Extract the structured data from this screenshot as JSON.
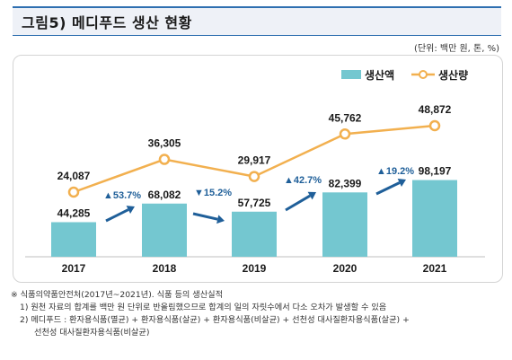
{
  "page": {
    "title": "그림5) 메디푸드 생산 현황",
    "unit": "(단위: 백만 원, 톤, %)"
  },
  "colors": {
    "bar": "#74c7d0",
    "line": "#f2b04f",
    "arrow": "#1f5f99",
    "accent": "#2e6fb0"
  },
  "chart_data": {
    "type": "bar",
    "categories": [
      "2017",
      "2018",
      "2019",
      "2020",
      "2021"
    ],
    "series": [
      {
        "name": "생산액",
        "type": "bar",
        "values": [
          44285,
          68082,
          57725,
          82399,
          98197
        ],
        "labels": [
          "44,285",
          "68,082",
          "57,725",
          "82,399",
          "98,197"
        ]
      },
      {
        "name": "생산량",
        "type": "line",
        "values": [
          24087,
          36305,
          29917,
          45762,
          48872
        ],
        "labels": [
          "24,087",
          "36,305",
          "29,917",
          "45,762",
          "48,872"
        ]
      }
    ],
    "growth_rates": [
      {
        "from": "2017",
        "to": "2018",
        "direction": "up",
        "label": "▲53.7%"
      },
      {
        "from": "2018",
        "to": "2019",
        "direction": "down",
        "label": "▼15.2%"
      },
      {
        "from": "2019",
        "to": "2020",
        "direction": "up",
        "label": "▲42.7%"
      },
      {
        "from": "2020",
        "to": "2021",
        "direction": "up",
        "label": "▲19.2%"
      }
    ],
    "legend_position": "top-right",
    "grid": false
  },
  "notes": [
    "※  식품의약품안전처(2017년~2021년). 식품 등의 생산실적",
    "1) 원천 자료의 합계를 백만 원 단위로 반올림했으므로 합계의 일의 자릿수에서 다소 오차가 발생할 수 있음",
    "2) 메디푸드 : 환자용식품(멸균) + 환자용식품(살균) + 환자용식품(비살균) + 선천성 대사질환자용식품(살균) +",
    "선천성 대사질환자용식품(비살균)"
  ]
}
